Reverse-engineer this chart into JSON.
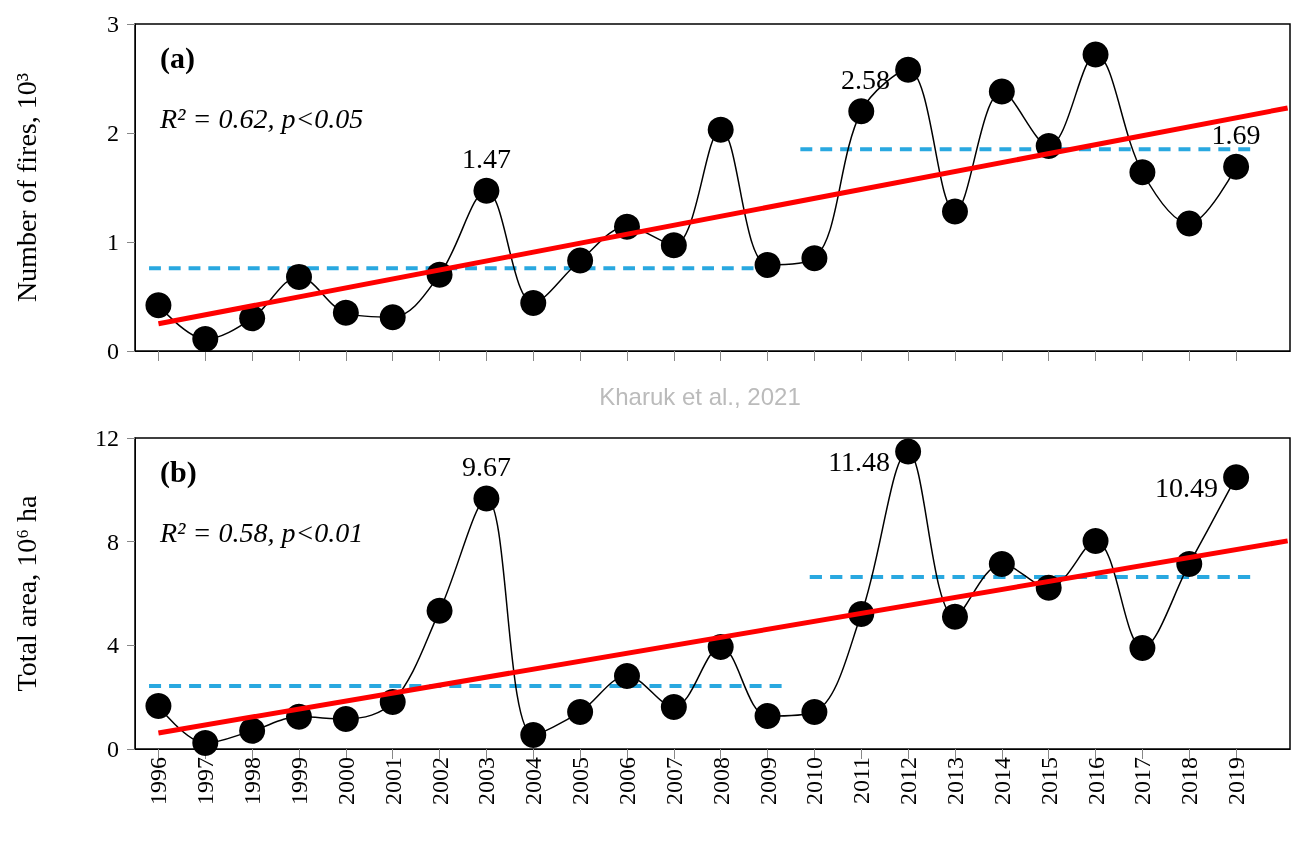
{
  "chart_data": [
    {
      "type": "line",
      "ylabel": "Number of fires, 10³",
      "xlim": [
        1995.5,
        2020.15
      ],
      "ylim": [
        0,
        3
      ],
      "yticks": [
        0,
        1,
        2,
        3
      ],
      "tick_labels": "y",
      "grid": false,
      "xticks": [
        1996,
        1997,
        1998,
        1999,
        2000,
        2001,
        2002,
        2003,
        2004,
        2005,
        2006,
        2007,
        2008,
        2009,
        2010,
        2011,
        2012,
        2013,
        2014,
        2015,
        2016,
        2017,
        2018,
        2019
      ],
      "series": [
        {
          "color": "#000000",
          "marker": "circle",
          "line_style": "solid",
          "x": [
            1996,
            1997,
            1998,
            1999,
            2000,
            2001,
            2002,
            2003,
            2004,
            2005,
            2006,
            2007,
            2008,
            2009,
            2010,
            2011,
            2012,
            2013,
            2014,
            2015,
            2016,
            2017,
            2018,
            2019
          ],
          "values": [
            0.42,
            0.11,
            0.3,
            0.68,
            0.35,
            0.31,
            0.7,
            1.47,
            0.44,
            0.83,
            1.14,
            0.97,
            2.03,
            0.79,
            0.85,
            2.2,
            2.58,
            1.28,
            2.38,
            1.88,
            2.72,
            1.64,
            1.17,
            1.69
          ]
        },
        {
          "color": "#29a8e0",
          "marker": "none",
          "line_style": "dashed",
          "x": [
            1995.8,
            2008.7
          ],
          "values": [
            0.76,
            0.76
          ]
        },
        {
          "color": "#29a8e0",
          "marker": "none",
          "line_style": "dashed",
          "x": [
            2009.7,
            2019.3
          ],
          "values": [
            1.85,
            1.85
          ]
        },
        {
          "color": "#ff0000",
          "marker": "none",
          "line_style": "solid",
          "x": [
            1996,
            2020.1
          ],
          "values": [
            0.25,
            2.23
          ]
        }
      ],
      "annotations": [
        "(a)",
        "R² = 0.62, p<0.05",
        {
          "text": "1.47",
          "x": 2003,
          "y": 1.47
        },
        {
          "text": "2.58",
          "x": 2012,
          "y": 2.58
        },
        {
          "text": "1.69",
          "x": 2019,
          "y": 1.69
        },
        "Kharuk et al., 2021"
      ]
    },
    {
      "type": "line",
      "ylabel": "Total area, 10⁶ ha",
      "xlim": [
        1995.5,
        2020.15
      ],
      "ylim": [
        0,
        12
      ],
      "yticks": [
        0,
        4,
        8,
        12
      ],
      "grid": false,
      "xticks": [
        1996,
        1997,
        1998,
        1999,
        2000,
        2001,
        2002,
        2003,
        2004,
        2005,
        2006,
        2007,
        2008,
        2009,
        2010,
        2011,
        2012,
        2013,
        2014,
        2015,
        2016,
        2017,
        2018,
        2019
      ],
      "series": [
        {
          "color": "#000000",
          "marker": "circle",
          "line_style": "solid",
          "x": [
            1996,
            1997,
            1998,
            1999,
            2000,
            2001,
            2002,
            2003,
            2004,
            2005,
            2006,
            2007,
            2008,
            2009,
            2010,
            2011,
            2012,
            2013,
            2014,
            2015,
            2016,
            2017,
            2018,
            2019
          ],
          "values": [
            1.66,
            0.23,
            0.7,
            1.24,
            1.16,
            1.81,
            5.33,
            9.67,
            0.54,
            1.43,
            2.82,
            1.62,
            3.94,
            1.27,
            1.43,
            5.21,
            11.48,
            5.1,
            7.14,
            6.22,
            8.03,
            3.9,
            7.14,
            10.49
          ]
        },
        {
          "color": "#29a8e0",
          "marker": "none",
          "line_style": "dashed",
          "x": [
            1995.8,
            2009.3
          ],
          "values": [
            2.43,
            2.43
          ]
        },
        {
          "color": "#29a8e0",
          "marker": "none",
          "line_style": "dashed",
          "x": [
            2009.9,
            2019.3
          ],
          "values": [
            6.64,
            6.64
          ]
        },
        {
          "color": "#ff0000",
          "marker": "none",
          "line_style": "solid",
          "x": [
            1996,
            2020.1
          ],
          "values": [
            0.62,
            8.03
          ]
        }
      ],
      "annotations": [
        "(b)",
        "R² = 0.58, p<0.01",
        {
          "text": "9.67",
          "x": 2003,
          "y": 9.67
        },
        {
          "text": "11.48",
          "x": 2012,
          "y": 11.48
        },
        {
          "text": "10.49",
          "x": 2019,
          "y": 10.49
        }
      ]
    }
  ]
}
